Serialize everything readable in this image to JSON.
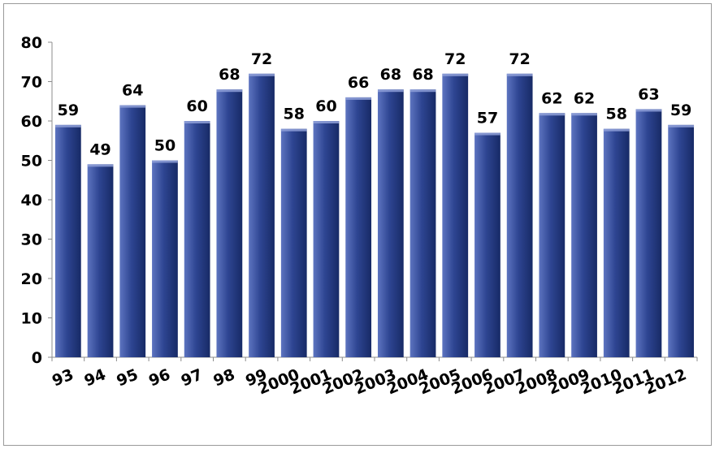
{
  "chart_data": {
    "type": "bar",
    "title": "",
    "xlabel": "",
    "ylabel": "",
    "categories": [
      "93",
      "94",
      "95",
      "96",
      "97",
      "98",
      "99",
      "2000",
      "2001",
      "2002",
      "2003",
      "2004",
      "2005",
      "2006",
      "2007",
      "2008",
      "2009",
      "2010",
      "2011",
      "2012"
    ],
    "values": [
      59,
      49,
      64,
      50,
      60,
      68,
      72,
      58,
      60,
      66,
      68,
      68,
      72,
      57,
      72,
      62,
      62,
      58,
      63,
      59
    ],
    "ylim": [
      0,
      80
    ],
    "yticks": [
      0,
      10,
      20,
      30,
      40,
      50,
      60,
      70,
      80
    ],
    "grid": false,
    "legend": "none",
    "colors": {
      "bar_fill": "#2e4592",
      "bar_light": "#5d74c0",
      "bar_dark": "#172a66",
      "bar_top": "#8fa0d8",
      "axis": "#8c8c8c"
    }
  }
}
